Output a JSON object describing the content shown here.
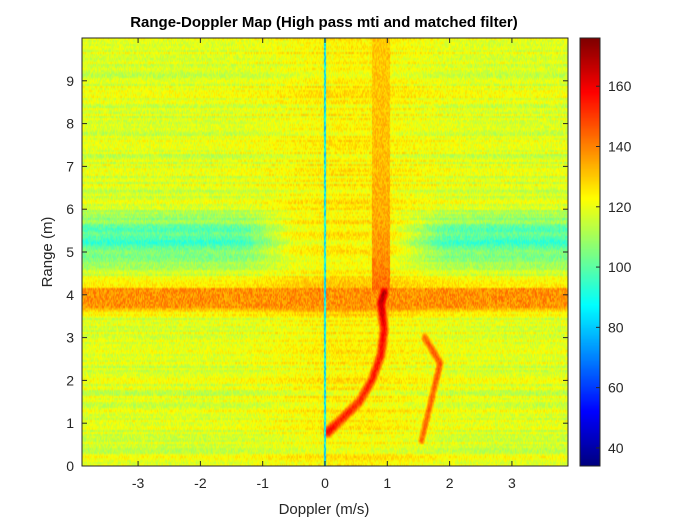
{
  "chart_data": {
    "type": "heatmap",
    "title": "Range-Doppler Map (High pass mti and matched filter)",
    "xlabel": "Doppler (m/s)",
    "ylabel": "Range (m)",
    "xlim": [
      -3.9,
      3.9
    ],
    "ylim": [
      0,
      10
    ],
    "xticks": [
      -3,
      -2,
      -1,
      0,
      1,
      2,
      3
    ],
    "yticks": [
      0,
      1,
      2,
      3,
      4,
      5,
      6,
      7,
      8,
      9
    ],
    "colorbar": {
      "colormap": "jet",
      "clim": [
        34,
        176
      ],
      "ticks": [
        40,
        60,
        80,
        100,
        120,
        140,
        160
      ]
    },
    "grid": false,
    "field": {
      "background_level": 118,
      "low_band": {
        "range": 5.3,
        "level": 97,
        "note": "cooler band around 5-5.5 m at |doppler| > 1"
      },
      "horizontal_band": {
        "range": [
          3.7,
          4.15
        ],
        "level": 146
      },
      "zero_doppler_line": {
        "doppler": 0.0,
        "level": 85
      },
      "vertical_streak": {
        "doppler": [
          0.75,
          1.05
        ],
        "range": [
          4.1,
          10
        ],
        "level": 130
      },
      "target_track": [
        {
          "doppler": 0.05,
          "range": 0.8,
          "level": 165
        },
        {
          "doppler": 0.2,
          "range": 1.0,
          "level": 160
        },
        {
          "doppler": 0.55,
          "range": 1.5,
          "level": 158
        },
        {
          "doppler": 0.75,
          "range": 2.0,
          "level": 160
        },
        {
          "doppler": 0.9,
          "range": 2.6,
          "level": 162
        },
        {
          "doppler": 0.95,
          "range": 3.2,
          "level": 165
        },
        {
          "doppler": 0.9,
          "range": 3.8,
          "level": 172
        },
        {
          "doppler": 0.95,
          "range": 4.05,
          "level": 174
        }
      ],
      "secondary_track": [
        {
          "doppler": 1.55,
          "range": 0.6,
          "level": 148
        },
        {
          "doppler": 1.75,
          "range": 1.8,
          "level": 150
        },
        {
          "doppler": 1.85,
          "range": 2.4,
          "level": 152
        },
        {
          "doppler": 1.6,
          "range": 3.0,
          "level": 150
        }
      ]
    }
  }
}
